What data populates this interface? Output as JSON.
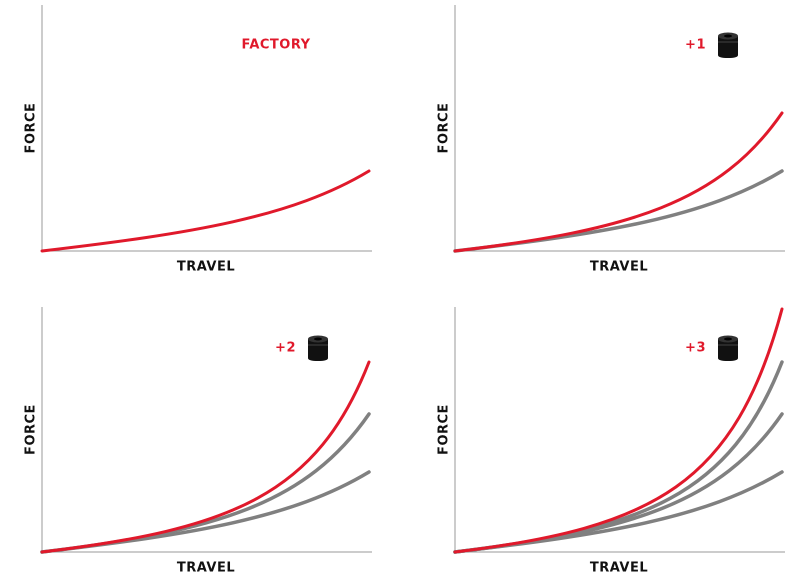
{
  "panels": [
    {
      "label": "FACTORY",
      "y_axis": "FORCE",
      "x_axis": "TRAVEL"
    },
    {
      "label": "+1",
      "y_axis": "FORCE",
      "x_axis": "TRAVEL"
    },
    {
      "label": "+2",
      "y_axis": "FORCE",
      "x_axis": "TRAVEL"
    },
    {
      "label": "+3",
      "y_axis": "FORCE",
      "x_axis": "TRAVEL"
    }
  ]
}
